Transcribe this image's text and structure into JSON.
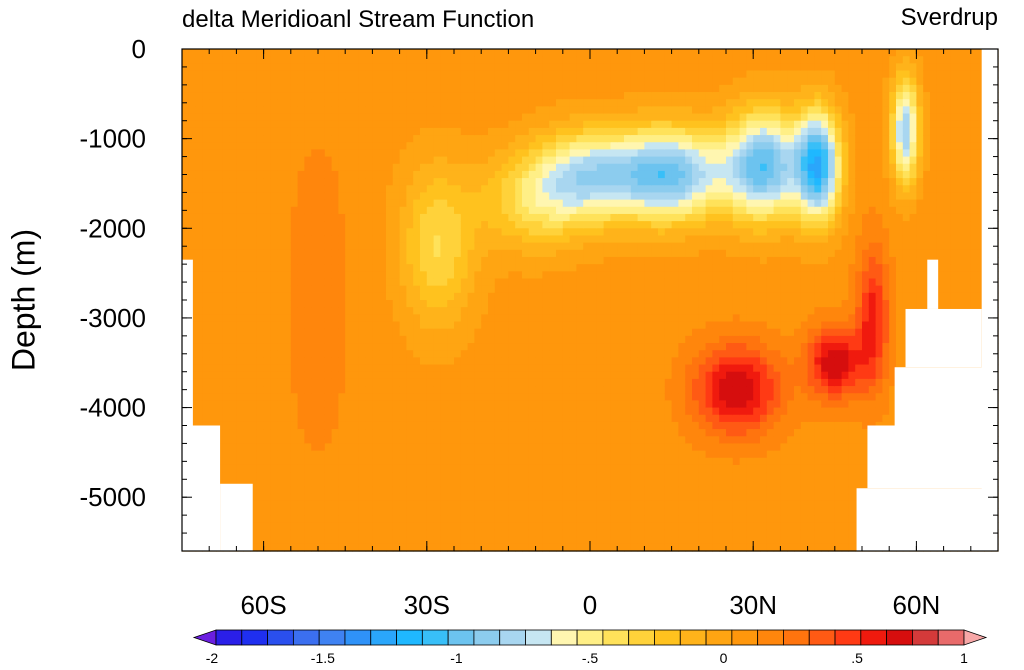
{
  "chart_data": {
    "type": "heatmap",
    "title": "delta Meridioanl Stream Function",
    "units": "Sverdrup",
    "ylabel": "Depth (m)",
    "xlabel": "",
    "x_ticks": [
      {
        "lat": -60,
        "label": "60S"
      },
      {
        "lat": -30,
        "label": "30S"
      },
      {
        "lat": 0,
        "label": "0"
      },
      {
        "lat": 30,
        "label": "30N"
      },
      {
        "lat": 60,
        "label": "60N"
      }
    ],
    "y_ticks": [
      {
        "depth": 0,
        "label": "0"
      },
      {
        "depth": -1000,
        "label": "-1000"
      },
      {
        "depth": -2000,
        "label": "-2000"
      },
      {
        "depth": -3000,
        "label": "-3000"
      },
      {
        "depth": -4000,
        "label": "-4000"
      },
      {
        "depth": -5000,
        "label": "-5000"
      }
    ],
    "xlim": [
      -75,
      75
    ],
    "ylim": [
      -5600,
      0
    ],
    "colorbar": {
      "levels": [
        -2,
        -1.9,
        -1.8,
        -1.7,
        -1.6,
        -1.5,
        -1.4,
        -1.3,
        -1.2,
        -1.1,
        -1,
        -0.9,
        -0.8,
        -0.7,
        -0.6,
        -0.5,
        -0.4,
        -0.3,
        -0.2,
        -0.1,
        0,
        0.1,
        0.2,
        0.3,
        0.4,
        0.5,
        0.6,
        0.7,
        0.8,
        0.9,
        1
      ],
      "colors": [
        "#6b1fe0",
        "#2a1fe8",
        "#1f2ff0",
        "#2a4fee",
        "#3b6ff0",
        "#3f82f2",
        "#2f92f8",
        "#2aa6fb",
        "#1fb8ff",
        "#38bff8",
        "#6cc3ef",
        "#8cccee",
        "#a8d6f0",
        "#c6e6f2",
        "#fff6b0",
        "#ffef86",
        "#ffe25a",
        "#ffd23a",
        "#ffc21e",
        "#ffb31a",
        "#ffa512",
        "#ff970c",
        "#ff860c",
        "#ff740e",
        "#ff5a14",
        "#ff3a14",
        "#f01a0e",
        "#d60e0e",
        "#d43a3a",
        "#e86a6a",
        "#f7a7a7"
      ],
      "tick_labels": [
        {
          "value": -2,
          "label": "-2"
        },
        {
          "value": -1.5,
          "label": "-1.5"
        },
        {
          "value": -1,
          "label": "-1"
        },
        {
          "value": -0.5,
          "label": "-.5"
        },
        {
          "value": 0,
          "label": "0"
        },
        {
          "value": 0.5,
          "label": ".5"
        },
        {
          "value": 1,
          "label": "1"
        }
      ]
    },
    "field": {
      "background": 0.05,
      "features": [
        {
          "lat": -28,
          "depth": -2200,
          "slat": 7,
          "sdepth": 900,
          "amp": -0.45
        },
        {
          "lat": -10,
          "depth": -1700,
          "slat": 10,
          "sdepth": 550,
          "amp": -0.45
        },
        {
          "lat": 0,
          "depth": -1400,
          "slat": 10,
          "sdepth": 500,
          "amp": -0.75
        },
        {
          "lat": 15,
          "depth": -1400,
          "slat": 10,
          "sdepth": 520,
          "amp": -1.05
        },
        {
          "lat": 32,
          "depth": -1300,
          "slat": 7,
          "sdepth": 600,
          "amp": -1.1
        },
        {
          "lat": 42,
          "depth": -1300,
          "slat": 4,
          "sdepth": 600,
          "amp": -1.25
        },
        {
          "lat": 58,
          "depth": -900,
          "slat": 2.5,
          "sdepth": 600,
          "amp": -0.95
        },
        {
          "lat": 27,
          "depth": -3800,
          "slat": 8,
          "sdepth": 500,
          "amp": 0.65
        },
        {
          "lat": 45,
          "depth": -3500,
          "slat": 5,
          "sdepth": 400,
          "amp": 0.65
        },
        {
          "lat": 52,
          "depth": -3000,
          "slat": 3,
          "sdepth": 800,
          "amp": 0.5
        },
        {
          "lat": -50,
          "depth": -2800,
          "slat": 8,
          "sdepth": 2500,
          "amp": 0.08
        }
      ],
      "land": [
        {
          "lat": [
            -75,
            -73
          ],
          "depth": [
            -2350,
            -5600
          ]
        },
        {
          "lat": [
            -75,
            -68
          ],
          "depth": [
            -4200,
            -5600
          ]
        },
        {
          "lat": [
            -68,
            -62
          ],
          "depth": [
            -4850,
            -5600
          ]
        },
        {
          "lat": [
            49,
            75
          ],
          "depth": [
            -4900,
            -5600
          ]
        },
        {
          "lat": [
            51,
            75
          ],
          "depth": [
            -4200,
            -4900
          ]
        },
        {
          "lat": [
            56,
            75
          ],
          "depth": [
            -3550,
            -4200
          ]
        },
        {
          "lat": [
            58,
            72
          ],
          "depth": [
            -2900,
            -3550
          ]
        },
        {
          "lat": [
            62,
            64
          ],
          "depth": [
            -2350,
            -2900
          ]
        },
        {
          "lat": [
            72,
            75
          ],
          "depth": [
            0,
            -5600
          ]
        }
      ]
    }
  }
}
